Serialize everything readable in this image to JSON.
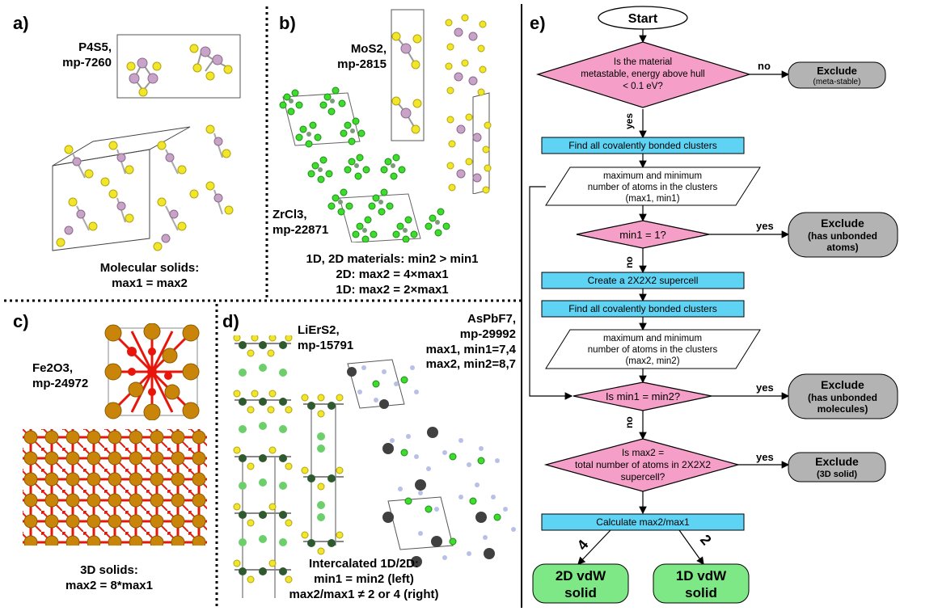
{
  "panel_a": {
    "label": "a)",
    "compound": "P4S5,",
    "mp_id": "mp-7260",
    "caption_line1": "Molecular solids:",
    "caption_line2": "max1 = max2"
  },
  "panel_b": {
    "label": "b)",
    "compound1": "MoS2,",
    "mp_id1": "mp-2815",
    "compound2": "ZrCl3,",
    "mp_id2": "mp-22871",
    "caption_line1": "1D, 2D materials: min2 > min1",
    "caption_line2": "2D: max2 = 4×max1",
    "caption_line3": "1D: max2 = 2×max1"
  },
  "panel_c": {
    "label": "c)",
    "compound": "Fe2O3,",
    "mp_id": "mp-24972",
    "caption_line1": "3D solids:",
    "caption_line2": "max2 = 8*max1"
  },
  "panel_d": {
    "label": "d)",
    "compound1": "LiErS2,",
    "mp_id1": "mp-15791",
    "compound2": "AsPbF7,",
    "mp_id2": "mp-29992",
    "stat1": "max1, min1=7,4",
    "stat2": "max2, min2=8,7",
    "caption_line1": "Intercalated 1D/2D:",
    "caption_line2": "min1 = min2 (left)",
    "caption_line3": "max2/max1 ≠ 2 or 4 (right)"
  },
  "panel_e": {
    "label": "e)",
    "start": "Start",
    "q1_lines": [
      "Is the material",
      "metastable, energy above hull",
      "< 0.1 eV?"
    ],
    "no": "no",
    "yes": "yes",
    "exclude": "Exclude",
    "exclude1_sub": "(meta-stable)",
    "step1": "Find all covalently bonded clusters",
    "io1_lines": [
      "maximum and minimum",
      "number of atoms in the clusters",
      "(max1, min1)"
    ],
    "q2": "min1 = 1?",
    "exclude2_sub": [
      "(has unbonded",
      "atoms)"
    ],
    "step2": "Create a 2X2X2 supercell",
    "step3": "Find all covalently bonded clusters",
    "io2_lines": [
      "maximum and minimum",
      "number of atoms in the clusters",
      "(max2, min2)"
    ],
    "q3": "Is min1 = min2?",
    "exclude3_sub": [
      "(has unbonded",
      "molecules)"
    ],
    "q4_lines": [
      "Is max2 =",
      "total number of atoms in 2X2X2",
      "supercell?"
    ],
    "exclude4_sub": "(3D solid)",
    "step4": "Calculate max2/max1",
    "branch_left": "4",
    "branch_right": "2",
    "out_left": [
      "2D vdW",
      "solid"
    ],
    "out_right": [
      "1D vdW",
      "solid"
    ]
  },
  "colors": {
    "decision": "#f59fc8",
    "process": "#5fd3f3",
    "exclude": "#b3b3b3",
    "output": "#7ee886",
    "sulfur": "#f2e62a",
    "phosphorus": "#c8a3c8",
    "chlorine": "#3ddc2d",
    "zirconium": "#7a9a7a",
    "iron": "#c8850a",
    "oxygen": "#e8150a",
    "lithium": "#6ccf6c",
    "erbium": "#2f5a2f",
    "fluorine": "#b8c0e8",
    "lead": "#404040"
  }
}
